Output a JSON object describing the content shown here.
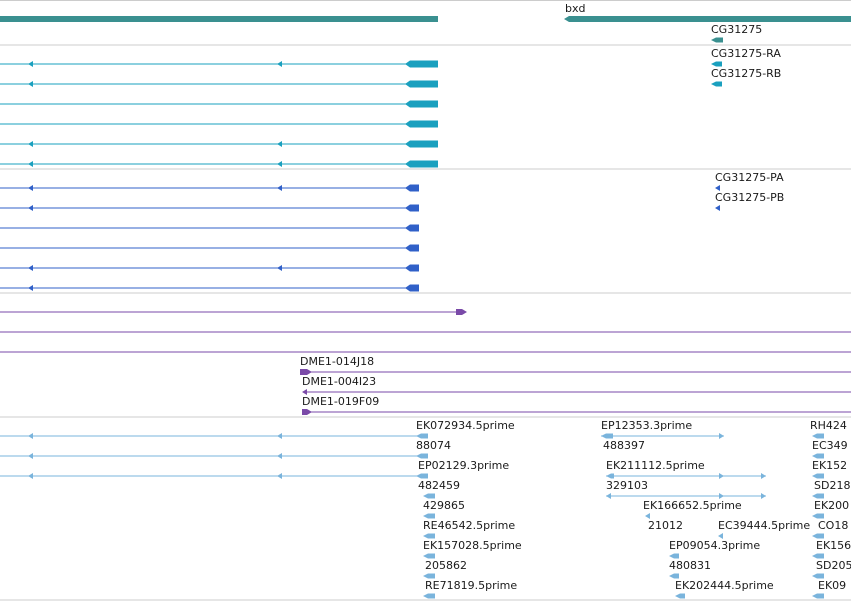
{
  "colors": {
    "gene": "#3a9090",
    "mrna": "#1aa0bf",
    "protein": "#3060c8",
    "clone": "#7a4aa8",
    "est": "#7ab4dc",
    "separator": "#cccccc"
  },
  "gene_track": {
    "gene_bxd": "bxd",
    "gene_cg31275": "CG31275"
  },
  "transcript_track": {
    "mrna_ra": "CG31275-RA",
    "mrna_rb": "CG31275-RB"
  },
  "protein_track": {
    "protein_pa": "CG31275-PA",
    "protein_pb": "CG31275-PB"
  },
  "clone_track": {
    "clone_1": "DME1-014J18",
    "clone_2": "DME1-004I23",
    "clone_3": "DME1-019F09"
  },
  "est_track": {
    "labels": [
      "EK072934.5prime",
      "88074",
      "EP02129.3prime",
      "482459",
      "429865",
      "RE46542.5prime",
      "EK157028.5prime",
      "205862",
      "RE71819.5prime",
      "EP12353.3prime",
      "488397",
      "EK211112.5prime",
      "329103",
      "EK166652.5prime",
      "21012",
      "EC39444.5prime",
      "EP09054.3prime",
      "480831",
      "EK202444.5prime",
      "RH424",
      "EC349",
      "EK152",
      "SD218",
      "EK200",
      "CO18",
      "EK156",
      "SD205",
      "EK09"
    ]
  }
}
